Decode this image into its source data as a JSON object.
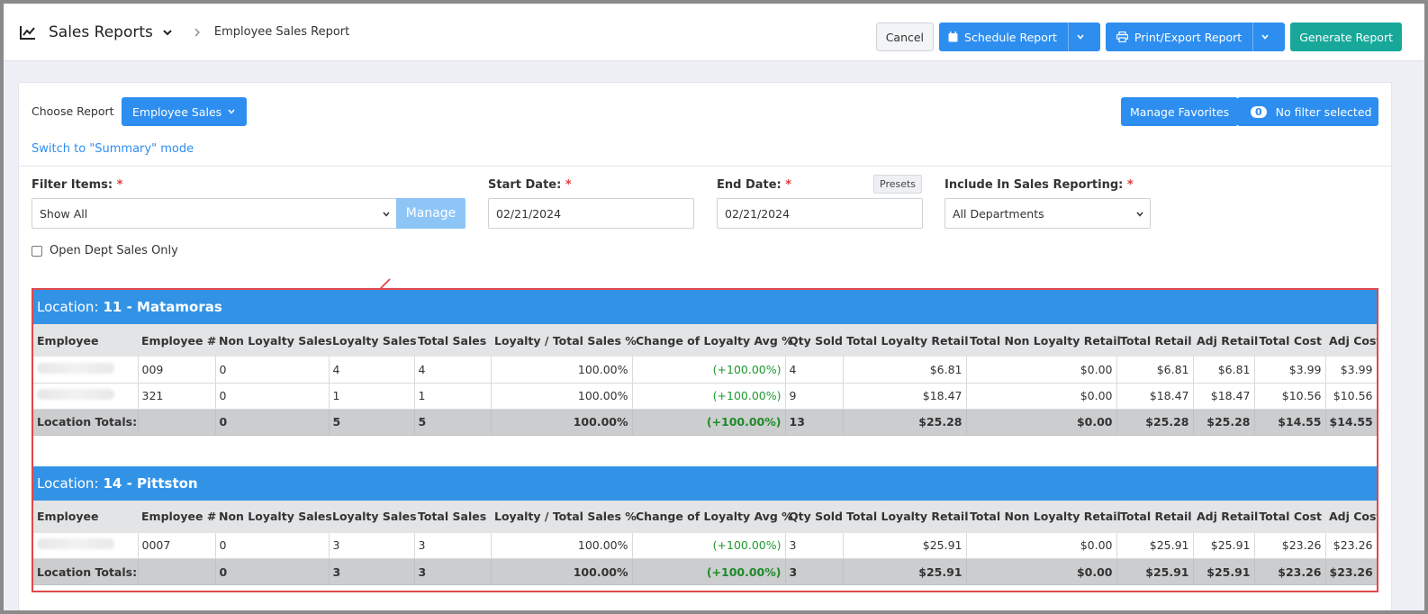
{
  "header": {
    "title": "Sales Reports",
    "breadcrumb": "Employee Sales Report",
    "cancel": "Cancel",
    "schedule": "Schedule Report",
    "print": "Print/Export Report",
    "generate": "Generate Report"
  },
  "controls": {
    "choose_label": "Choose Report",
    "report_selected": "Employee Sales",
    "switch_link": "Switch to \"Summary\" mode",
    "manage_favorites": "Manage Favorites",
    "filter_count": "0",
    "filter_text": "No filter selected",
    "filter_items_label": "Filter Items:",
    "filter_items_value": "Show All",
    "manage": "Manage",
    "start_label": "Start Date:",
    "start_value": "02/21/2024",
    "end_label": "End Date:",
    "end_value": "02/21/2024",
    "presets": "Presets",
    "include_label": "Include In Sales Reporting:",
    "include_value": "All Departments",
    "required_mark": "*",
    "open_dept": "Open Dept Sales Only"
  },
  "columns": [
    "Employee",
    "Employee #",
    "Non Loyalty Sales",
    "Loyalty Sales",
    "Total Sales",
    "Loyalty / Total Sales %",
    "Change of Loyalty Avg %",
    "Qty Sold",
    "Total Loyalty Retail",
    "Total Non Loyalty Retail",
    "Total Retail",
    "Adj Retail",
    "Total Cost",
    "Adj Cost"
  ],
  "locations": [
    {
      "prefix": "Location:",
      "name": "11 - Matamoras",
      "rows": [
        [
          "",
          "009",
          "0",
          "4",
          "4",
          "100.00%",
          "(+100.00%)",
          "4",
          "$6.81",
          "$0.00",
          "$6.81",
          "$6.81",
          "$3.99",
          "$3.99"
        ],
        [
          "",
          "321",
          "0",
          "1",
          "1",
          "100.00%",
          "(+100.00%)",
          "9",
          "$18.47",
          "$0.00",
          "$18.47",
          "$18.47",
          "$10.56",
          "$10.56"
        ]
      ],
      "totals": [
        "Location Totals:",
        "",
        "0",
        "5",
        "5",
        "100.00%",
        "(+100.00%)",
        "13",
        "$25.28",
        "$0.00",
        "$25.28",
        "$25.28",
        "$14.55",
        "$14.55"
      ]
    },
    {
      "prefix": "Location:",
      "name": "14 - Pittston",
      "rows": [
        [
          "",
          "0007",
          "0",
          "3",
          "3",
          "100.00%",
          "(+100.00%)",
          "3",
          "$25.91",
          "$0.00",
          "$25.91",
          "$25.91",
          "$23.26",
          "$23.26"
        ]
      ],
      "totals": [
        "Location Totals:",
        "",
        "0",
        "3",
        "3",
        "100.00%",
        "(+100.00%)",
        "3",
        "$25.91",
        "$0.00",
        "$25.91",
        "$25.91",
        "$23.26",
        "$23.26"
      ]
    }
  ],
  "colors": {
    "primary": "#2d8ef0",
    "teal": "#17a89a",
    "location_header": "#3293e6",
    "highlight_border": "#e0474c",
    "positive": "#1e9a2e"
  }
}
